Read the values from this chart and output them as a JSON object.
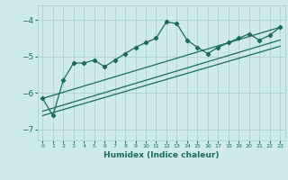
{
  "background_color": "#ceeaea",
  "grid_color": "#afd0d0",
  "line_color": "#1a6b5a",
  "x_label": "Humidex (Indice chaleur)",
  "x_ticks": [
    0,
    1,
    2,
    3,
    4,
    5,
    6,
    7,
    8,
    9,
    10,
    11,
    12,
    13,
    14,
    15,
    16,
    17,
    18,
    19,
    20,
    21,
    22,
    23
  ],
  "xlim": [
    -0.5,
    23.5
  ],
  "ylim": [
    -7.3,
    -3.6
  ],
  "yticks": [
    -7,
    -6,
    -5,
    -4
  ],
  "series1_x": [
    0,
    1,
    2,
    3,
    4,
    5,
    6,
    7,
    8,
    9,
    10,
    11,
    12,
    13,
    14,
    15,
    16,
    17,
    18,
    19,
    20,
    21,
    22,
    23
  ],
  "series1_y": [
    -6.15,
    -6.62,
    -5.65,
    -5.18,
    -5.18,
    -5.1,
    -5.28,
    -5.1,
    -4.92,
    -4.75,
    -4.62,
    -4.5,
    -4.05,
    -4.1,
    -4.55,
    -4.75,
    -4.92,
    -4.75,
    -4.62,
    -4.5,
    -4.38,
    -4.55,
    -4.42,
    -4.2
  ],
  "series2_x": [
    0,
    23
  ],
  "series2_y": [
    -6.15,
    -4.2
  ],
  "series3_x": [
    0,
    23
  ],
  "series3_y": [
    -6.5,
    -4.55
  ],
  "series4_x": [
    0,
    23
  ],
  "series4_y": [
    -6.62,
    -4.72
  ]
}
